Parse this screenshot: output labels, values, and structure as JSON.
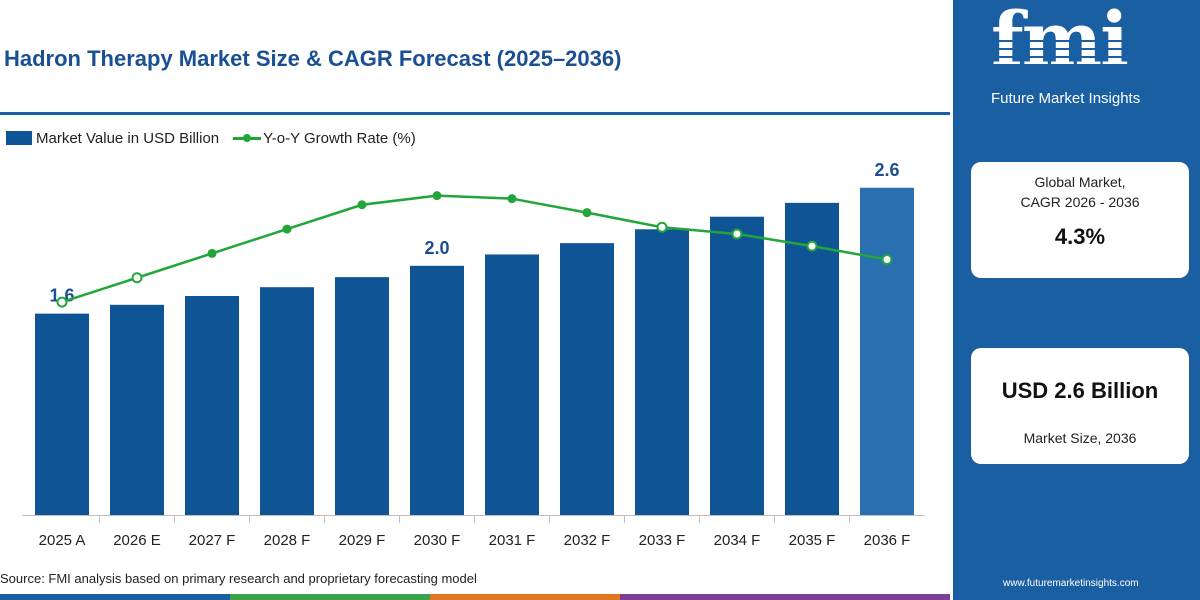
{
  "title": "Hadron Therapy Market Size & CAGR Forecast (2025–2036)",
  "legend": {
    "bar_label": "Market Value in USD Billion",
    "line_label": "Y-o-Y Growth Rate (%)"
  },
  "source": "Source: FMI analysis based on primary research and proprietary forecasting model",
  "side_panel": {
    "logo_text": "fmi",
    "logo_subtitle": "Future Market Insights",
    "cagr_card": {
      "label_line1": "Global Market,",
      "label_line2": "CAGR 2026 - 2036",
      "value": "4.3%"
    },
    "size_card": {
      "value": "USD 2.6 Billion",
      "label": "Market Size, 2036"
    },
    "website": "www.futuremarketinsights.com"
  },
  "colors": {
    "bar": "#0f5596",
    "bar_highlight": "#2a6fb0",
    "line": "#22a53a",
    "panel": "#1b5fa3",
    "title": "#1b4f93"
  },
  "chart_data": {
    "type": "bar",
    "categories": [
      "2025 A",
      "2026 E",
      "2027 F",
      "2028 F",
      "2029 F",
      "2030 F",
      "2031 F",
      "2032 F",
      "2033 F",
      "2034 F",
      "2035 F",
      "2036 F"
    ],
    "series": [
      {
        "name": "Market Value in USD Billion",
        "type": "bar",
        "values": [
          1.6,
          1.67,
          1.74,
          1.81,
          1.89,
          1.98,
          2.07,
          2.16,
          2.27,
          2.37,
          2.48,
          2.6
        ]
      },
      {
        "name": "Y-o-Y Growth Rate (%)",
        "type": "line",
        "values": [
          3.5,
          3.9,
          4.3,
          4.7,
          5.1,
          5.25,
          5.2,
          4.97,
          4.73,
          4.62,
          4.42,
          4.2
        ]
      }
    ],
    "data_labels": [
      {
        "index": 0,
        "text": "1.6"
      },
      {
        "index": 5,
        "text": "2.0"
      },
      {
        "index": 11,
        "text": "2.6"
      }
    ],
    "bar_ylim": [
      0,
      2.9
    ],
    "line_ylim": [
      0,
      6.0
    ],
    "highlight_index": 11,
    "legend_position": "top-left",
    "grid": false
  }
}
